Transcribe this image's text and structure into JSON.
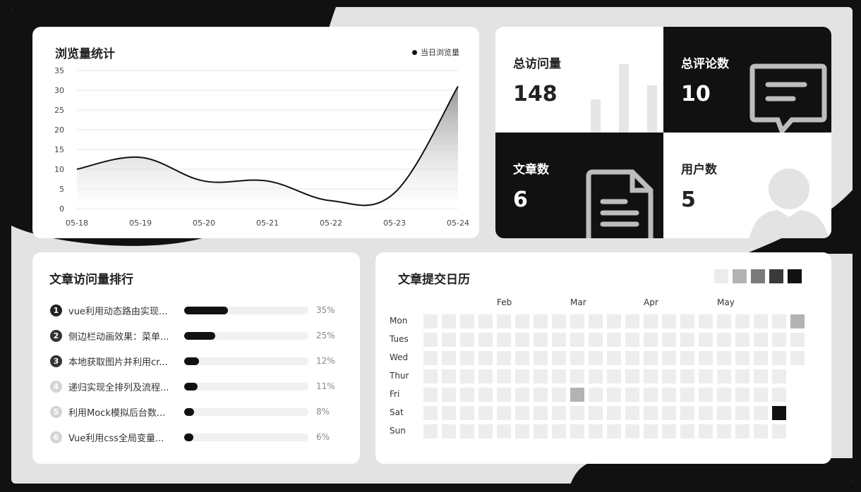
{
  "chart_data": {
    "type": "line",
    "title": "浏览量统计",
    "legend": "当日浏览量",
    "categories": [
      "05-18",
      "05-19",
      "05-20",
      "05-21",
      "05-22",
      "05-23",
      "05-24"
    ],
    "series": [
      {
        "name": "当日浏览量",
        "values": [
          10,
          13,
          7,
          7,
          2,
          4,
          31
        ]
      }
    ],
    "ylim": [
      0,
      35
    ],
    "yticks": [
      0,
      5,
      10,
      15,
      20,
      25,
      30,
      35
    ],
    "grid": true
  },
  "stats": [
    {
      "label": "总访问量",
      "value": "148",
      "icon": "bar-chart-icon"
    },
    {
      "label": "总评论数",
      "value": "10",
      "icon": "comment-icon"
    },
    {
      "label": "文章数",
      "value": "6",
      "icon": "document-icon"
    },
    {
      "label": "用户数",
      "value": "5",
      "icon": "user-icon"
    }
  ],
  "ranking": {
    "title": "文章访问量排行",
    "items": [
      {
        "rank": "1",
        "name": "vue利用动态路由实现...",
        "percent": 35,
        "percent_label": "35%"
      },
      {
        "rank": "2",
        "name": "侧边栏动画效果：菜单...",
        "percent": 25,
        "percent_label": "25%"
      },
      {
        "rank": "3",
        "name": "本地获取图片并利用cr...",
        "percent": 12,
        "percent_label": "12%"
      },
      {
        "rank": "4",
        "name": "递归实现全排列及流程...",
        "percent": 11,
        "percent_label": "11%"
      },
      {
        "rank": "5",
        "name": "利用Mock模拟后台数...",
        "percent": 8,
        "percent_label": "8%"
      },
      {
        "rank": "6",
        "name": "Vue利用css全局变量...",
        "percent": 6,
        "percent_label": "6%"
      }
    ]
  },
  "calendar": {
    "title": "文章提交日历",
    "months": [
      "Feb",
      "Mar",
      "Apr",
      "May"
    ],
    "days": [
      "Mon",
      "Tues",
      "Wed",
      "Thur",
      "Fri",
      "Sat",
      "Sun"
    ],
    "legend_colors": [
      "#ececec",
      "#b3b3b3",
      "#7a7a7a",
      "#3a3a3a",
      "#111111"
    ],
    "weeks": 21,
    "last_week_days": 3,
    "active": [
      {
        "week": 20,
        "day": 0,
        "level": 1
      },
      {
        "week": 8,
        "day": 4,
        "level": 1
      },
      {
        "week": 19,
        "day": 5,
        "level": 4
      }
    ]
  }
}
